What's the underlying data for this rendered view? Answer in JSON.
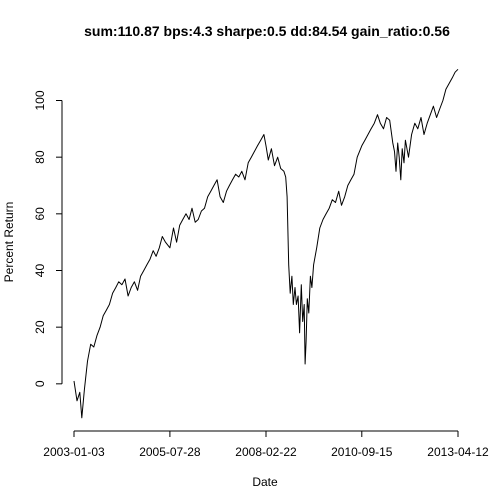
{
  "chart_data": {
    "type": "line",
    "title": "sum:110.87 bps:4.3 sharpe:0.5 dd:84.54 gain_ratio:0.56",
    "xlabel": "Date",
    "ylabel": "Percent Return",
    "xlim": [
      "2003-01-03",
      "2013-04-12"
    ],
    "ylim": [
      -17,
      115
    ],
    "x_ticks": [
      "2003-01-03",
      "2005-07-28",
      "2008-02-22",
      "2010-09-15",
      "2013-04-12"
    ],
    "y_ticks": [
      0,
      20,
      40,
      60,
      80,
      100
    ],
    "grid": false,
    "legend": "none",
    "line_color": "#000000",
    "series": [
      {
        "x": [
          "2003-01-03",
          "2003-02-01",
          "2003-03-01",
          "2003-03-20",
          "2003-04-15",
          "2003-05-15",
          "2003-06-15",
          "2003-07-15",
          "2003-08-15",
          "2003-09-15",
          "2003-10-15",
          "2003-11-15",
          "2003-12-15",
          "2004-01-15",
          "2004-02-15",
          "2004-03-15",
          "2004-04-15",
          "2004-05-15",
          "2004-06-15",
          "2004-07-15",
          "2004-08-15",
          "2004-09-15",
          "2004-10-15",
          "2004-11-15",
          "2004-12-15",
          "2005-01-15",
          "2005-02-15",
          "2005-03-15",
          "2005-04-15",
          "2005-05-15",
          "2005-06-15",
          "2005-07-28",
          "2005-09-01",
          "2005-10-01",
          "2005-11-01",
          "2005-12-01",
          "2006-01-01",
          "2006-02-01",
          "2006-03-01",
          "2006-04-01",
          "2006-05-01",
          "2006-06-01",
          "2006-07-01",
          "2006-08-01",
          "2006-09-01",
          "2006-10-01",
          "2006-11-01",
          "2006-12-01",
          "2007-01-01",
          "2007-02-01",
          "2007-03-01",
          "2007-04-01",
          "2007-05-01",
          "2007-06-01",
          "2007-07-01",
          "2007-08-01",
          "2007-09-01",
          "2007-10-01",
          "2007-11-01",
          "2007-12-01",
          "2008-01-01",
          "2008-02-01",
          "2008-02-22",
          "2008-03-15",
          "2008-04-15",
          "2008-05-15",
          "2008-06-15",
          "2008-07-15",
          "2008-08-15",
          "2008-09-01",
          "2008-09-15",
          "2008-10-01",
          "2008-10-15",
          "2008-11-01",
          "2008-11-15",
          "2008-12-01",
          "2008-12-15",
          "2009-01-01",
          "2009-01-15",
          "2009-02-01",
          "2009-02-15",
          "2009-03-01",
          "2009-03-10",
          "2009-03-20",
          "2009-04-01",
          "2009-04-15",
          "2009-05-01",
          "2009-05-15",
          "2009-06-01",
          "2009-07-01",
          "2009-08-01",
          "2009-09-01",
          "2009-10-01",
          "2009-11-01",
          "2009-12-01",
          "2010-01-01",
          "2010-02-01",
          "2010-03-01",
          "2010-04-01",
          "2010-05-01",
          "2010-06-01",
          "2010-07-01",
          "2010-08-01",
          "2010-09-15",
          "2010-10-15",
          "2010-11-15",
          "2010-12-15",
          "2011-01-15",
          "2011-02-15",
          "2011-03-15",
          "2011-04-15",
          "2011-05-15",
          "2011-06-15",
          "2011-07-15",
          "2011-08-01",
          "2011-08-15",
          "2011-09-01",
          "2011-09-15",
          "2011-10-01",
          "2011-10-15",
          "2011-11-01",
          "2011-11-15",
          "2011-12-15",
          "2012-01-15",
          "2012-02-15",
          "2012-03-15",
          "2012-04-15",
          "2012-05-15",
          "2012-06-15",
          "2012-07-15",
          "2012-08-15",
          "2012-09-15",
          "2012-10-15",
          "2012-11-15",
          "2012-12-15",
          "2013-01-15",
          "2013-02-15",
          "2013-03-15",
          "2013-04-12"
        ],
        "values": [
          1,
          -6,
          -3,
          -12,
          -2,
          8,
          14,
          13,
          17,
          20,
          24,
          26,
          28,
          32,
          34,
          36,
          35,
          37,
          31,
          34,
          36,
          33,
          38,
          40,
          42,
          44,
          47,
          45,
          48,
          52,
          50,
          48,
          55,
          50,
          56,
          58,
          60,
          58,
          62,
          57,
          58,
          61,
          62,
          66,
          68,
          70,
          72,
          66,
          64,
          68,
          70,
          72,
          74,
          73,
          75,
          72,
          78,
          80,
          82,
          84,
          86,
          88,
          84,
          79,
          83,
          77,
          80,
          76,
          75,
          73,
          66,
          42,
          32,
          38,
          28,
          34,
          28,
          31,
          18,
          35,
          22,
          28,
          7,
          15,
          30,
          25,
          38,
          34,
          42,
          48,
          55,
          58,
          60,
          62,
          65,
          64,
          68,
          63,
          66,
          70,
          72,
          74,
          80,
          84,
          86,
          88,
          90,
          92,
          95,
          92,
          90,
          94,
          93,
          85,
          82,
          75,
          85,
          80,
          72,
          83,
          78,
          86,
          80,
          88,
          92,
          90,
          94,
          88,
          92,
          95,
          98,
          94,
          97,
          100,
          104,
          106,
          108,
          110,
          111
        ]
      }
    ]
  }
}
